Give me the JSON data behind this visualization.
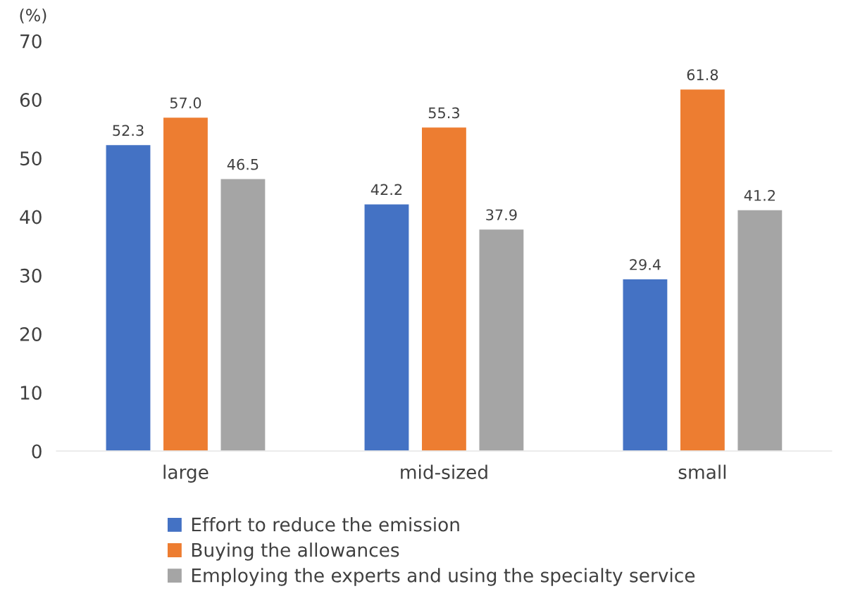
{
  "chart_data": {
    "type": "bar",
    "ylabel": "(%)",
    "categories": [
      "large",
      "mid-sized",
      "small"
    ],
    "series": [
      {
        "name": "Effort to reduce the emission",
        "color": "#4472c4",
        "values": [
          52.3,
          42.2,
          29.4
        ]
      },
      {
        "name": "Buying the allowances",
        "color": "#ed7d31",
        "values": [
          57.0,
          55.3,
          61.8
        ]
      },
      {
        "name": "Employing the experts and using the specialty service",
        "color": "#a5a5a5",
        "values": [
          46.5,
          37.9,
          41.2
        ]
      }
    ],
    "value_labels": [
      [
        "52.3",
        "42.2",
        "29.4"
      ],
      [
        "57.0",
        "55.3",
        "61.8"
      ],
      [
        "46.5",
        "37.9",
        "41.2"
      ]
    ],
    "ylim": [
      0,
      70
    ],
    "yticks": [
      0,
      10,
      20,
      30,
      40,
      50,
      60,
      70
    ],
    "grid": false,
    "legend": "bottom"
  }
}
